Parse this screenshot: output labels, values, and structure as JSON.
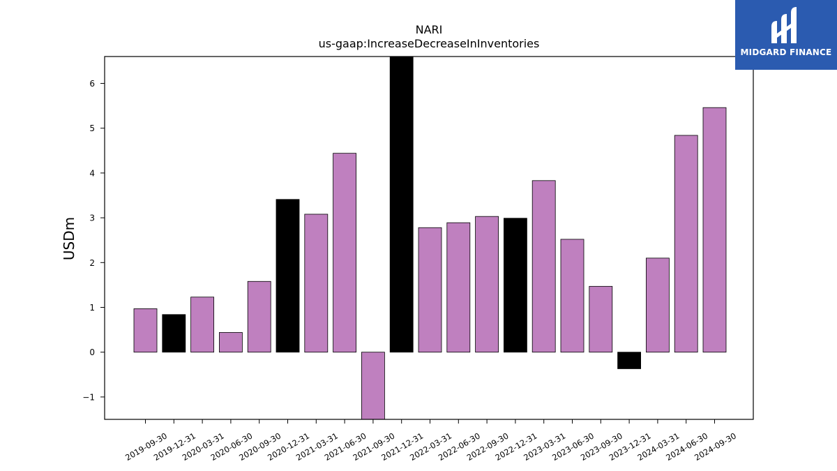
{
  "chart_data": {
    "type": "bar",
    "title": "NARI",
    "subtitle": "us-gaap:IncreaseDecreaseInInventories",
    "xlabel": "",
    "ylabel": "USDm",
    "ylim": [
      -1.5,
      6.6
    ],
    "yticks": [
      -1,
      0,
      1,
      2,
      3,
      4,
      5,
      6
    ],
    "ytick_labels": [
      "−1",
      "0",
      "1",
      "2",
      "3",
      "4",
      "5",
      "6"
    ],
    "grid": false,
    "categories": [
      "2019-09-30",
      "2019-12-31",
      "2020-03-31",
      "2020-06-30",
      "2020-09-30",
      "2020-12-31",
      "2021-03-31",
      "2021-06-30",
      "2021-09-30",
      "2021-12-31",
      "2022-03-31",
      "2022-06-30",
      "2022-09-30",
      "2022-12-31",
      "2023-03-31",
      "2023-06-30",
      "2023-09-30",
      "2023-12-31",
      "2024-03-31",
      "2024-06-30",
      "2024-09-30"
    ],
    "values": [
      0.97,
      0.84,
      1.23,
      0.44,
      1.58,
      3.41,
      3.08,
      4.44,
      -1.9,
      7.0,
      2.78,
      2.89,
      3.03,
      2.99,
      3.83,
      2.52,
      1.47,
      -0.37,
      2.1,
      4.84,
      5.46
    ],
    "bar_colors": [
      "#bf80bf",
      "#000000",
      "#bf80bf",
      "#bf80bf",
      "#bf80bf",
      "#000000",
      "#bf80bf",
      "#bf80bf",
      "#bf80bf",
      "#000000",
      "#bf80bf",
      "#bf80bf",
      "#bf80bf",
      "#000000",
      "#bf80bf",
      "#bf80bf",
      "#bf80bf",
      "#000000",
      "#bf80bf",
      "#bf80bf",
      "#bf80bf"
    ],
    "colors": {
      "quarter": "#bf80bf",
      "year_end": "#000000"
    }
  },
  "logo": {
    "text": "MIDGARD FINANCE",
    "background": "#2b5bb0"
  }
}
